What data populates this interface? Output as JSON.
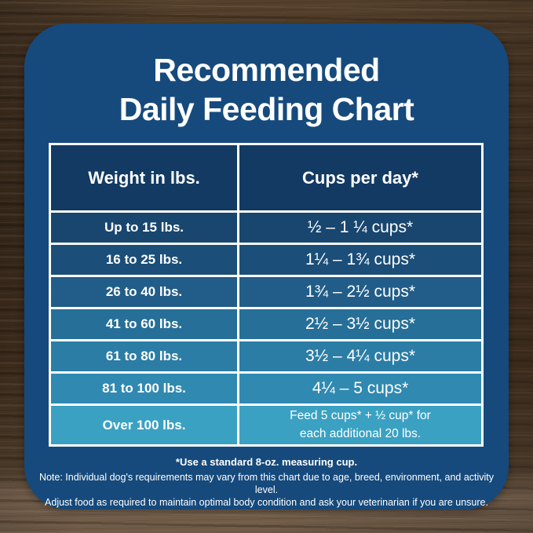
{
  "chart_data": {
    "type": "table",
    "title_line1": "Recommended",
    "title_line2": "Daily Feeding Chart",
    "columns": [
      "Weight in lbs.",
      "Cups per day*"
    ],
    "rows": [
      [
        "Up to 15 lbs.",
        "½ – 1 ¼ cups*"
      ],
      [
        "16 to 25 lbs.",
        "1¼ – 1¾ cups*"
      ],
      [
        "26 to 40 lbs.",
        "1¾ – 2½ cups*"
      ],
      [
        "41 to 60 lbs.",
        "2½ – 3½ cups*"
      ],
      [
        "61 to 80 lbs.",
        "3½ – 4¼ cups*"
      ],
      [
        "81 to 100 lbs.",
        "4¼ – 5 cups*"
      ],
      [
        "Over 100 lbs.",
        "Feed 5 cups* + ½ cup* for\neach additional 20 lbs."
      ]
    ],
    "row_numeric": [
      {
        "weight_lbs_min": 0,
        "weight_lbs_max": 15,
        "cups_min": 0.5,
        "cups_max": 1.25
      },
      {
        "weight_lbs_min": 16,
        "weight_lbs_max": 25,
        "cups_min": 1.25,
        "cups_max": 1.75
      },
      {
        "weight_lbs_min": 26,
        "weight_lbs_max": 40,
        "cups_min": 1.75,
        "cups_max": 2.5
      },
      {
        "weight_lbs_min": 41,
        "weight_lbs_max": 60,
        "cups_min": 2.5,
        "cups_max": 3.5
      },
      {
        "weight_lbs_min": 61,
        "weight_lbs_max": 80,
        "cups_min": 3.5,
        "cups_max": 4.25
      },
      {
        "weight_lbs_min": 81,
        "weight_lbs_max": 100,
        "cups_min": 4.25,
        "cups_max": 5
      },
      {
        "weight_lbs_min": 100,
        "rule": "Feed 5 cups plus 0.5 cup for each additional 20 lbs"
      }
    ]
  },
  "notes": {
    "line1": "*Use a standard 8-oz. measuring cup.",
    "line2": "Note: Individual dog's requirements may vary from this chart due to age, breed, environment, and activity level.",
    "line3": "Adjust food as required to maintain optimal body condition and ask your veterinarian if you are unsure."
  },
  "colors": {
    "card_bg": "#164A7C",
    "header_bg": "#123A63",
    "row_bgs": [
      "#18466F",
      "#1B4E78",
      "#215D88",
      "#266F98",
      "#2B7DA6",
      "#3089B1",
      "#3BA1C2"
    ],
    "border": "#FFFFFF",
    "text": "#FFFFFF",
    "wood_dark": "#41301F",
    "wood_light": "#7A6450"
  }
}
